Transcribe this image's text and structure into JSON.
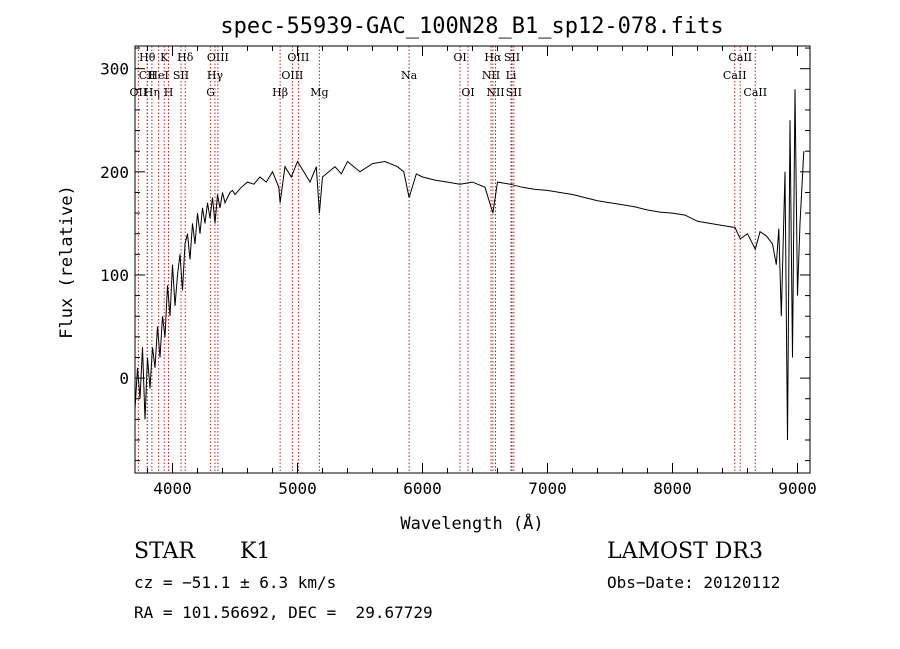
{
  "chart_data": {
    "type": "line",
    "title": "spec-55939-GAC_100N28_B1_sp12-078.fits",
    "xlabel": "Wavelength (Å)",
    "ylabel": "Flux (relative)",
    "xlim": [
      3700,
      9100
    ],
    "ylim": [
      -92,
      322
    ],
    "xticks": [
      4000,
      5000,
      6000,
      7000,
      8000,
      9000
    ],
    "yticks": [
      0,
      100,
      200,
      300
    ],
    "grid": false,
    "line_color": "#000000",
    "marker_color": "#b22222",
    "series": [
      {
        "x": [
          3700,
          3720,
          3740,
          3760,
          3780,
          3800,
          3820,
          3840,
          3860,
          3880,
          3900,
          3920,
          3940,
          3960,
          3980,
          4000,
          4020,
          4040,
          4060,
          4080,
          4100,
          4120,
          4140,
          4160,
          4180,
          4200,
          4220,
          4240,
          4260,
          4280,
          4300,
          4320,
          4340,
          4360,
          4380,
          4400,
          4420,
          4440,
          4460,
          4480,
          4500,
          4550,
          4600,
          4650,
          4700,
          4750,
          4800,
          4850,
          4861,
          4900,
          4950,
          5000,
          5050,
          5100,
          5150,
          5175,
          5200,
          5250,
          5300,
          5350,
          5400,
          5450,
          5500,
          5600,
          5700,
          5800,
          5850,
          5893,
          5950,
          6000,
          6100,
          6200,
          6300,
          6400,
          6500,
          6563,
          6600,
          6700,
          6800,
          6900,
          7000,
          7100,
          7200,
          7300,
          7400,
          7500,
          7600,
          7700,
          7800,
          7900,
          8000,
          8100,
          8200,
          8300,
          8400,
          8500,
          8542,
          8600,
          8662,
          8700,
          8750,
          8800,
          8830,
          8850,
          8870,
          8900,
          8920,
          8940,
          8960,
          8980,
          9000,
          9020,
          9050
        ],
        "y": [
          -30,
          10,
          -20,
          30,
          -40,
          20,
          -10,
          30,
          10,
          50,
          20,
          60,
          40,
          90,
          60,
          110,
          70,
          100,
          120,
          85,
          130,
          140,
          115,
          150,
          130,
          160,
          140,
          165,
          150,
          170,
          155,
          175,
          150,
          178,
          165,
          180,
          170,
          175,
          180,
          182,
          178,
          185,
          190,
          188,
          195,
          190,
          200,
          185,
          170,
          205,
          195,
          210,
          200,
          190,
          205,
          160,
          195,
          200,
          205,
          198,
          210,
          205,
          200,
          208,
          210,
          205,
          200,
          175,
          198,
          195,
          192,
          190,
          188,
          190,
          185,
          160,
          190,
          188,
          185,
          183,
          182,
          180,
          178,
          175,
          172,
          170,
          168,
          166,
          163,
          161,
          160,
          158,
          152,
          150,
          148,
          146,
          135,
          140,
          125,
          142,
          138,
          130,
          110,
          145,
          60,
          200,
          -60,
          250,
          20,
          280,
          80,
          150,
          220
        ]
      }
    ],
    "line_markers": [
      {
        "label": "Hθ",
        "x": 3798,
        "row": 1
      },
      {
        "label": "CII",
        "x": 3798,
        "row": 2
      },
      {
        "label": "OII",
        "x": 3727,
        "row": 3
      },
      {
        "label": "Hη",
        "x": 3835,
        "row": 3
      },
      {
        "label": "K",
        "x": 3934,
        "row": 1
      },
      {
        "label": "HeI",
        "x": 3889,
        "row": 2
      },
      {
        "label": "H",
        "x": 3968,
        "row": 3
      },
      {
        "label": "Hδ",
        "x": 4102,
        "row": 1
      },
      {
        "label": "SII",
        "x": 4068,
        "row": 2
      },
      {
        "label": "OIII",
        "x": 4363,
        "row": 1
      },
      {
        "label": "Hγ",
        "x": 4340,
        "row": 2
      },
      {
        "label": "G",
        "x": 4305,
        "row": 3
      },
      {
        "label": "Hβ",
        "x": 4861,
        "row": 3
      },
      {
        "label": "OIII",
        "x": 5007,
        "row": 1
      },
      {
        "label": "OIII",
        "x": 4959,
        "row": 2
      },
      {
        "label": "Mg",
        "x": 5175,
        "row": 3
      },
      {
        "label": "Na",
        "x": 5893,
        "row": 2
      },
      {
        "label": "OI",
        "x": 6300,
        "row": 1
      },
      {
        "label": "OI",
        "x": 6364,
        "row": 3
      },
      {
        "label": "Hα",
        "x": 6563,
        "row": 1
      },
      {
        "label": "NII",
        "x": 6548,
        "row": 2
      },
      {
        "label": "NII",
        "x": 6584,
        "row": 3
      },
      {
        "label": "SII",
        "x": 6716,
        "row": 1
      },
      {
        "label": "Li",
        "x": 6708,
        "row": 2
      },
      {
        "label": "SII",
        "x": 6731,
        "row": 3
      },
      {
        "label": "CaII",
        "x": 8542,
        "row": 1
      },
      {
        "label": "CaII",
        "x": 8498,
        "row": 2
      },
      {
        "label": "CaII",
        "x": 8662,
        "row": 3
      }
    ]
  },
  "info": {
    "object_class": "STAR",
    "subclass": "K1",
    "survey": "LAMOST DR3",
    "cz": "cz = −51.1 ± 6.3 km/s",
    "obs_date": "Obs−Date: 20120112",
    "coords": "RA = 101.56692, DEC =  29.67729"
  }
}
